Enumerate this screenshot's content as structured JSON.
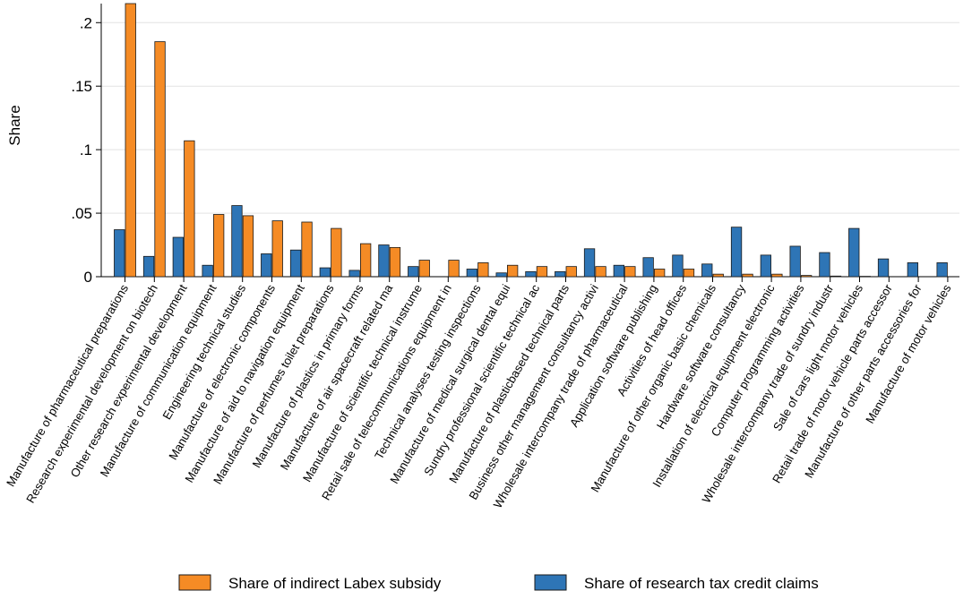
{
  "chart_data": {
    "type": "bar",
    "ylabel": "Share",
    "xlabel": "",
    "ylim": [
      0,
      0.215
    ],
    "yticks": [
      {
        "value": 0,
        "label": "0"
      },
      {
        "value": 0.05,
        "label": ".05"
      },
      {
        "value": 0.1,
        "label": ".1"
      },
      {
        "value": 0.15,
        "label": ".15"
      },
      {
        "value": 0.2,
        "label": ".2"
      }
    ],
    "grid": "horizontal",
    "legend_position": "bottom",
    "categories": [
      "Manufacture of pharmaceutical preparations",
      "Research experimental development on biotech",
      "Other research experimental development",
      "Manufacture of communication equipment",
      "Engineering technical studies",
      "Manufacture of electronic components",
      "Manufacture of aid to navigation equipment",
      "Manufacture of perfumes toilet preparations",
      "Manufacture of plastics in primary forms",
      "Manufacture of air spacecraft related ma",
      "Manufacture of scientific technical instrume",
      "Retail sale of telecommunications equipment in",
      "Technical analyses testing inspections",
      "Manufacture of medical surgical dental equi",
      "Sundry professional scientific technical ac",
      "Manufacture of plasticbased technical parts",
      "Business other management consultancy activi",
      "Wholesale intercompany trade of pharmaceutical",
      "Application software publishing",
      "Activities of head offices",
      "Manufacture of other organic basic chemicals",
      "Hardware software consultancy",
      "Installation of electrical equipment electronic",
      "Computer programming activities",
      "Wholesale intercompany trade of sundry industr",
      "Sale of cars light motor vehicles",
      "Retail trade of motor vehicle parts accessor",
      "Manufacture of other parts accessories for",
      "Manufacture of motor vehicles"
    ],
    "series": [
      {
        "name": "Share of research tax credit claims",
        "color": "#2e75b6",
        "values": [
          0.037,
          0.016,
          0.031,
          0.009,
          0.056,
          0.018,
          0.021,
          0.007,
          0.005,
          0.025,
          0.008,
          0.0,
          0.006,
          0.003,
          0.004,
          0.004,
          0.022,
          0.009,
          0.015,
          0.017,
          0.01,
          0.039,
          0.017,
          0.024,
          0.019,
          0.038,
          0.014,
          0.011,
          0.011
        ]
      },
      {
        "name": "Share of indirect Labex subsidy",
        "color": "#f58b25",
        "values": [
          0.215,
          0.185,
          0.107,
          0.049,
          0.048,
          0.044,
          0.043,
          0.038,
          0.026,
          0.023,
          0.013,
          0.013,
          0.011,
          0.009,
          0.008,
          0.008,
          0.008,
          0.008,
          0.006,
          0.006,
          0.002,
          0.002,
          0.002,
          0.001,
          0.0005,
          0.0003,
          0.0,
          0.0,
          0.0
        ]
      }
    ],
    "legend": [
      {
        "label": "Share of indirect Labex subsidy",
        "color": "#f58b25"
      },
      {
        "label": "Share of research tax credit claims",
        "color": "#2e75b6"
      }
    ]
  }
}
